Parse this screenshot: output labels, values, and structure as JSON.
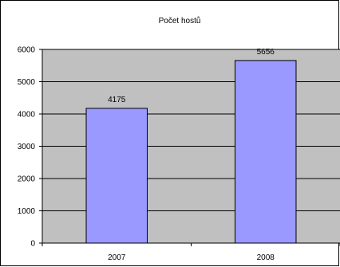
{
  "chart_data": {
    "type": "bar",
    "title": "Počet hostů",
    "categories": [
      "2007",
      "2008"
    ],
    "series": [
      {
        "values": [
          4175,
          5656
        ]
      }
    ],
    "data_labels": [
      "4175",
      "5656"
    ],
    "yticks": [
      "0",
      "1000",
      "2000",
      "3000",
      "4000",
      "5000",
      "6000"
    ],
    "ylim": [
      0,
      6000
    ],
    "grid": true,
    "legend": "none",
    "colors": {
      "bar_fill": "#9999FF",
      "plot_area": "#C0C0C0",
      "gridline": "#000000",
      "bar_stroke": "#000000"
    }
  }
}
